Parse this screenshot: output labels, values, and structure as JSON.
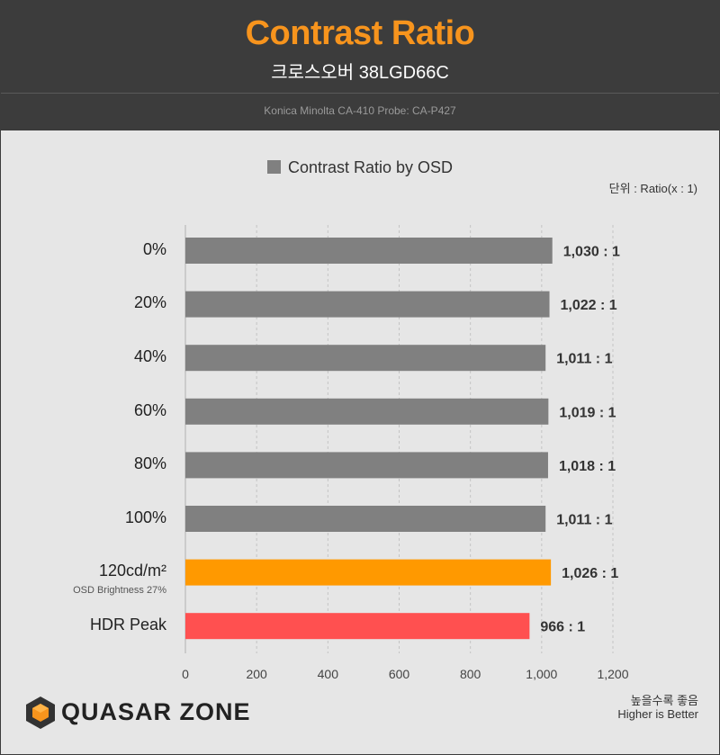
{
  "header": {
    "title": "Contrast Ratio",
    "subtitle": "크로스오버 38LGD66C",
    "device": "Konica Minolta CA-410 Probe: CA-P427"
  },
  "unit_label": "단위 : Ratio(x : 1)",
  "footer": {
    "note_ko": "높을수록 좋음",
    "note_en": "Higher is Better",
    "brand": "QUASAR ZONE"
  },
  "colors": {
    "title": "#f7941d",
    "bar_default": "#808080",
    "bar_highlight": "#ff9900",
    "bar_hdr": "#ff5050"
  },
  "chart_data": {
    "type": "bar",
    "orientation": "horizontal",
    "title": "Contrast Ratio",
    "legend": [
      "Contrast Ratio by OSD"
    ],
    "categories": [
      "0%",
      "20%",
      "40%",
      "60%",
      "80%",
      "100%",
      "120cd/m²",
      "HDR Peak"
    ],
    "category_notes": [
      "",
      "",
      "",
      "",
      "",
      "",
      "OSD Brightness 27%",
      ""
    ],
    "values": [
      1030,
      1022,
      1011,
      1019,
      1018,
      1011,
      1026,
      966
    ],
    "value_labels": [
      "1,030 : 1",
      "1,022 : 1",
      "1,011 : 1",
      "1,019 : 1",
      "1,018 : 1",
      "1,011 : 1",
      "1,026 : 1",
      "966 : 1"
    ],
    "bar_colors": [
      "#808080",
      "#808080",
      "#808080",
      "#808080",
      "#808080",
      "#808080",
      "#ff9900",
      "#ff5050"
    ],
    "xlim": [
      0,
      1200
    ],
    "xticks": [
      0,
      200,
      400,
      600,
      800,
      1000,
      1200
    ],
    "xtick_labels": [
      "0",
      "200",
      "400",
      "600",
      "800",
      "1,000",
      "1,200"
    ],
    "xlabel": "",
    "ylabel": "",
    "grid": true,
    "legend_position": "top-center"
  }
}
